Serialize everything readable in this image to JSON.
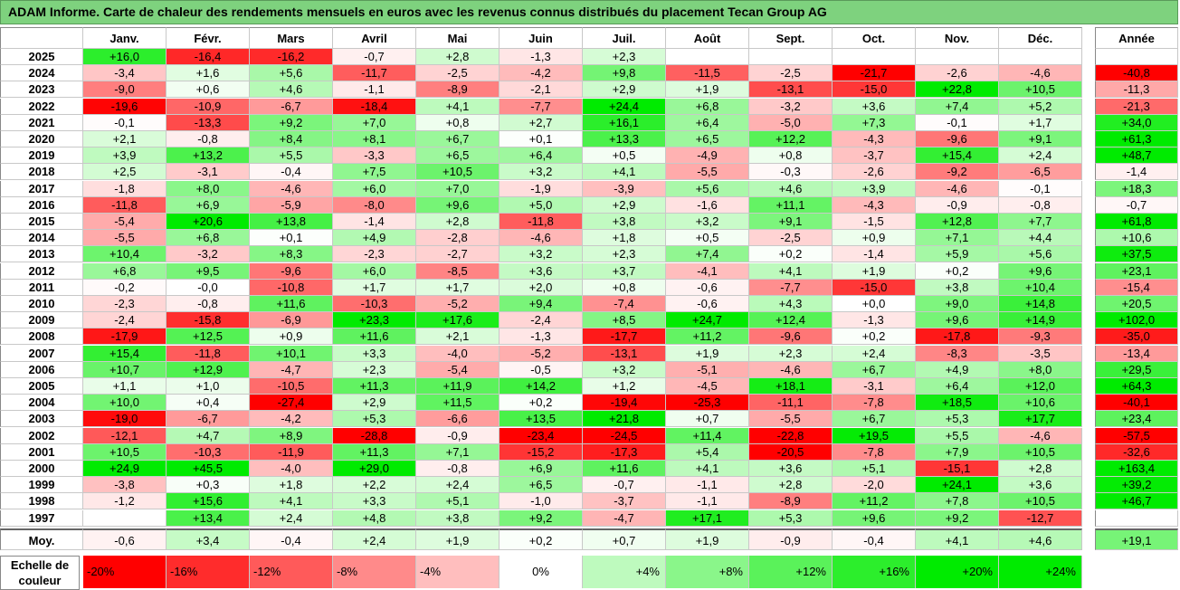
{
  "title": "ADAM Informe. Carte de chaleur des rendements mensuels en euros avec les revenus connus distribués du placement Tecan Group AG",
  "chart_data": {
    "type": "heatmap",
    "months": [
      "Janv.",
      "Févr.",
      "Mars",
      "Avril",
      "Mai",
      "Juin",
      "Juil.",
      "Août",
      "Sept.",
      "Oct.",
      "Nov.",
      "Déc."
    ],
    "annual_label": "Année",
    "rows": [
      {
        "year": "2025",
        "values": [
          "+16,0",
          "-16,4",
          "-16,2",
          "-0,7",
          "+2,8",
          "-1,3",
          "+2,3",
          "",
          "",
          "",
          "",
          ""
        ],
        "annual": ""
      },
      {
        "year": "2024",
        "values": [
          "-3,4",
          "+1,6",
          "+5,6",
          "-11,7",
          "-2,5",
          "-4,2",
          "+9,8",
          "-11,5",
          "-2,5",
          "-21,7",
          "-2,6",
          "-4,6"
        ],
        "annual": "-40,8"
      },
      {
        "year": "2023",
        "values": [
          "-9,0",
          "+0,6",
          "+4,6",
          "-1,1",
          "-8,9",
          "-2,1",
          "+2,9",
          "+1,9",
          "-13,1",
          "-15,0",
          "+22,8",
          "+10,5"
        ],
        "annual": "-11,3"
      },
      {
        "year": "2022",
        "values": [
          "-19,6",
          "-10,9",
          "-6,7",
          "-18,4",
          "+4,1",
          "-7,7",
          "+24,4",
          "+6,8",
          "-3,2",
          "+3,6",
          "+7,4",
          "+5,2"
        ],
        "annual": "-21,3"
      },
      {
        "year": "2021",
        "values": [
          "-0,1",
          "-13,3",
          "+9,2",
          "+7,0",
          "+0,8",
          "+2,7",
          "+16,1",
          "+6,4",
          "-5,0",
          "+7,3",
          "-0,1",
          "+1,7"
        ],
        "annual": "+34,0"
      },
      {
        "year": "2020",
        "values": [
          "+2,1",
          "-0,8",
          "+8,4",
          "+8,1",
          "+6,7",
          "+0,1",
          "+13,3",
          "+6,5",
          "+12,2",
          "-4,3",
          "-9,6",
          "+9,1"
        ],
        "annual": "+61,3"
      },
      {
        "year": "2019",
        "values": [
          "+3,9",
          "+13,2",
          "+5,5",
          "-3,3",
          "+6,5",
          "+6,4",
          "+0,5",
          "-4,9",
          "+0,8",
          "-3,7",
          "+15,4",
          "+2,4"
        ],
        "annual": "+48,7"
      },
      {
        "year": "2018",
        "values": [
          "+2,5",
          "-3,1",
          "-0,4",
          "+7,5",
          "+10,5",
          "+3,2",
          "+4,1",
          "-5,5",
          "-0,3",
          "-2,6",
          "-9,2",
          "-6,5"
        ],
        "annual": "-1,4"
      },
      {
        "year": "2017",
        "values": [
          "-1,8",
          "+8,0",
          "-4,6",
          "+6,0",
          "+7,0",
          "-1,9",
          "-3,9",
          "+5,6",
          "+4,6",
          "+3,9",
          "-4,6",
          "-0,1"
        ],
        "annual": "+18,3"
      },
      {
        "year": "2016",
        "values": [
          "-11,8",
          "+6,9",
          "-5,9",
          "-8,0",
          "+9,6",
          "+5,0",
          "+2,9",
          "-1,6",
          "+11,1",
          "-4,3",
          "-0,9",
          "-0,8"
        ],
        "annual": "-0,7"
      },
      {
        "year": "2015",
        "values": [
          "-5,4",
          "+20,6",
          "+13,8",
          "-1,4",
          "+2,8",
          "-11,8",
          "+3,8",
          "+3,2",
          "+9,1",
          "-1,5",
          "+12,8",
          "+7,7"
        ],
        "annual": "+61,8"
      },
      {
        "year": "2014",
        "values": [
          "-5,5",
          "+6,8",
          "+0,1",
          "+4,9",
          "-2,8",
          "-4,6",
          "+1,8",
          "+0,5",
          "-2,5",
          "+0,9",
          "+7,1",
          "+4,4"
        ],
        "annual": "+10,6"
      },
      {
        "year": "2013",
        "values": [
          "+10,4",
          "-3,2",
          "+8,3",
          "-2,3",
          "-2,7",
          "+3,2",
          "+2,3",
          "+7,4",
          "+0,2",
          "-1,4",
          "+5,9",
          "+5,6"
        ],
        "annual": "+37,5"
      },
      {
        "year": "2012",
        "values": [
          "+6,8",
          "+9,5",
          "-9,6",
          "+6,0",
          "-8,5",
          "+3,6",
          "+3,7",
          "-4,1",
          "+4,1",
          "+1,9",
          "+0,2",
          "+9,6"
        ],
        "annual": "+23,1"
      },
      {
        "year": "2011",
        "values": [
          "-0,2",
          "-0,0",
          "-10,8",
          "+1,7",
          "+1,7",
          "+2,0",
          "+0,8",
          "-0,6",
          "-7,7",
          "-15,0",
          "+3,8",
          "+10,4"
        ],
        "annual": "-15,4"
      },
      {
        "year": "2010",
        "values": [
          "-2,3",
          "-0,8",
          "+11,6",
          "-10,3",
          "-5,2",
          "+9,4",
          "-7,4",
          "-0,6",
          "+4,3",
          "+0,0",
          "+9,0",
          "+14,8"
        ],
        "annual": "+20,5"
      },
      {
        "year": "2009",
        "values": [
          "-2,4",
          "-15,8",
          "-6,9",
          "+23,3",
          "+17,6",
          "-2,4",
          "+8,5",
          "+24,7",
          "+12,4",
          "-1,3",
          "+9,6",
          "+14,9"
        ],
        "annual": "+102,0"
      },
      {
        "year": "2008",
        "values": [
          "-17,9",
          "+12,5",
          "+0,9",
          "+11,6",
          "+2,1",
          "-1,3",
          "-17,7",
          "+11,2",
          "-9,6",
          "+0,2",
          "-17,8",
          "-9,3"
        ],
        "annual": "-35,0"
      },
      {
        "year": "2007",
        "values": [
          "+15,4",
          "-11,8",
          "+10,1",
          "+3,3",
          "-4,0",
          "-5,2",
          "-13,1",
          "+1,9",
          "+2,3",
          "+2,4",
          "-8,3",
          "-3,5"
        ],
        "annual": "-13,4"
      },
      {
        "year": "2006",
        "values": [
          "+10,7",
          "+12,9",
          "-4,7",
          "+2,3",
          "-5,4",
          "-0,5",
          "+3,2",
          "-5,1",
          "-4,6",
          "+6,7",
          "+4,9",
          "+8,0"
        ],
        "annual": "+29,5"
      },
      {
        "year": "2005",
        "values": [
          "+1,1",
          "+1,0",
          "-10,5",
          "+11,3",
          "+11,9",
          "+14,2",
          "+1,2",
          "-4,5",
          "+18,1",
          "-3,1",
          "+6,4",
          "+12,0"
        ],
        "annual": "+64,3"
      },
      {
        "year": "2004",
        "values": [
          "+10,0",
          "+0,4",
          "-27,4",
          "+2,9",
          "+11,5",
          "+0,2",
          "-19,4",
          "-25,3",
          "-11,1",
          "-7,8",
          "+18,5",
          "+10,6"
        ],
        "annual": "-40,1"
      },
      {
        "year": "2003",
        "values": [
          "-19,0",
          "-6,7",
          "-4,2",
          "+5,3",
          "-6,6",
          "+13,5",
          "+21,8",
          "+0,7",
          "-5,5",
          "+6,7",
          "+5,3",
          "+17,7"
        ],
        "annual": "+23,4"
      },
      {
        "year": "2002",
        "values": [
          "-12,1",
          "+4,7",
          "+8,9",
          "-28,8",
          "-0,9",
          "-23,4",
          "-24,5",
          "+11,4",
          "-22,8",
          "+19,5",
          "+5,5",
          "-4,6"
        ],
        "annual": "-57,5"
      },
      {
        "year": "2001",
        "values": [
          "+10,5",
          "-10,3",
          "-11,9",
          "+11,3",
          "+7,1",
          "-15,2",
          "-17,3",
          "+5,4",
          "-20,5",
          "-7,8",
          "+7,9",
          "+10,5"
        ],
        "annual": "-32,6"
      },
      {
        "year": "2000",
        "values": [
          "+24,9",
          "+45,5",
          "-4,0",
          "+29,0",
          "-0,8",
          "+6,9",
          "+11,6",
          "+4,1",
          "+3,6",
          "+5,1",
          "-15,1",
          "+2,8"
        ],
        "annual": "+163,4"
      },
      {
        "year": "1999",
        "values": [
          "-3,8",
          "+0,3",
          "+1,8",
          "+2,2",
          "+2,4",
          "+6,5",
          "-0,7",
          "-1,1",
          "+2,8",
          "-2,0",
          "+24,1",
          "+3,6"
        ],
        "annual": "+39,2"
      },
      {
        "year": "1998",
        "values": [
          "-1,2",
          "+15,6",
          "+4,1",
          "+3,3",
          "+5,1",
          "-1,0",
          "-3,7",
          "-1,1",
          "-8,9",
          "+11,2",
          "+7,8",
          "+10,5"
        ],
        "annual": "+46,7"
      },
      {
        "year": "1997",
        "values": [
          "",
          "+13,4",
          "+2,4",
          "+4,8",
          "+3,8",
          "+9,2",
          "-4,7",
          "+17,1",
          "+5,3",
          "+9,6",
          "+9,2",
          "-12,7"
        ],
        "annual": ""
      }
    ],
    "average": {
      "label": "Moy.",
      "values": [
        "-0,6",
        "+3,4",
        "-0,4",
        "+2,4",
        "+1,9",
        "+0,2",
        "+0,7",
        "+1,9",
        "-0,9",
        "-0,4",
        "+4,1",
        "+4,6"
      ],
      "annual": "+19,1"
    },
    "scale": {
      "label": "Echelle de couleur",
      "steps": [
        "-20%",
        "-16%",
        "-12%",
        "-8%",
        "-4%",
        "0%",
        "+4%",
        "+8%",
        "+12%",
        "+16%",
        "+20%",
        "+24%"
      ]
    },
    "colors": {
      "negative": "#ff0000",
      "positive": "#00dd00",
      "neutral": "#ffffff",
      "title_bg": "#7ed27e"
    }
  }
}
